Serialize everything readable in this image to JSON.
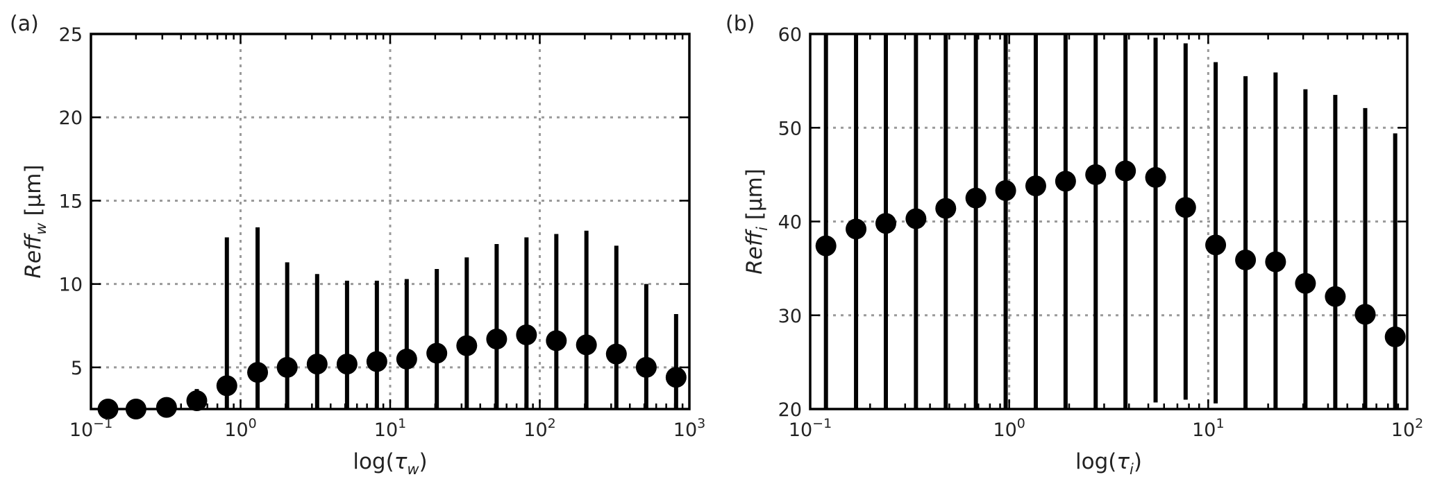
{
  "chart_data": [
    {
      "type": "scatter",
      "panel_label": "(a)",
      "title": "",
      "xlabel": {
        "base": "log(",
        "symbol": "τ",
        "sub": "w",
        "close": ")"
      },
      "ylabel": {
        "main": "Reff",
        "sub": "w",
        "unit": " [μm]"
      },
      "x_scale": "log",
      "xlim": [
        0.1,
        1000
      ],
      "ylim": [
        2.5,
        25
      ],
      "x_ticks": [
        {
          "base": "10",
          "exp": "−1",
          "value": 0.1
        },
        {
          "base": "10",
          "exp": "0",
          "value": 1
        },
        {
          "base": "10",
          "exp": "1",
          "value": 10
        },
        {
          "base": "10",
          "exp": "2",
          "value": 100
        },
        {
          "base": "10",
          "exp": "3",
          "value": 1000
        }
      ],
      "y_ticks": [
        5,
        10,
        15,
        20,
        25
      ],
      "grid": true,
      "points": [
        {
          "x": 0.13,
          "y": 2.5,
          "ylow": 2.5,
          "yhigh": 2.5
        },
        {
          "x": 0.2,
          "y": 2.5,
          "ylow": 2.5,
          "yhigh": 2.5
        },
        {
          "x": 0.32,
          "y": 2.6,
          "ylow": 2.5,
          "yhigh": 2.6
        },
        {
          "x": 0.51,
          "y": 3.0,
          "ylow": 2.5,
          "yhigh": 3.7
        },
        {
          "x": 0.81,
          "y": 3.9,
          "ylow": 2.5,
          "yhigh": 12.8
        },
        {
          "x": 1.3,
          "y": 4.7,
          "ylow": 2.5,
          "yhigh": 13.4
        },
        {
          "x": 2.05,
          "y": 5.0,
          "ylow": 2.5,
          "yhigh": 11.3
        },
        {
          "x": 3.25,
          "y": 5.2,
          "ylow": 2.5,
          "yhigh": 10.6
        },
        {
          "x": 5.15,
          "y": 5.2,
          "ylow": 2.5,
          "yhigh": 10.2
        },
        {
          "x": 8.15,
          "y": 5.35,
          "ylow": 2.5,
          "yhigh": 10.2
        },
        {
          "x": 12.9,
          "y": 5.5,
          "ylow": 2.5,
          "yhigh": 10.3
        },
        {
          "x": 20.5,
          "y": 5.85,
          "ylow": 2.5,
          "yhigh": 10.9
        },
        {
          "x": 32.5,
          "y": 6.3,
          "ylow": 2.5,
          "yhigh": 11.6
        },
        {
          "x": 51.5,
          "y": 6.7,
          "ylow": 2.5,
          "yhigh": 12.4
        },
        {
          "x": 81.5,
          "y": 6.95,
          "ylow": 2.5,
          "yhigh": 12.8
        },
        {
          "x": 129,
          "y": 6.6,
          "ylow": 2.5,
          "yhigh": 13.0
        },
        {
          "x": 205,
          "y": 6.35,
          "ylow": 2.5,
          "yhigh": 13.2
        },
        {
          "x": 325,
          "y": 5.8,
          "ylow": 2.5,
          "yhigh": 12.3
        },
        {
          "x": 515,
          "y": 5.0,
          "ylow": 2.5,
          "yhigh": 10.0
        },
        {
          "x": 815,
          "y": 4.4,
          "ylow": 2.5,
          "yhigh": 8.2
        }
      ]
    },
    {
      "type": "scatter",
      "panel_label": "(b)",
      "title": "",
      "xlabel": {
        "base": "log(",
        "symbol": "τ",
        "sub": "i",
        "close": ")"
      },
      "ylabel": {
        "main": "Reff",
        "sub": "i",
        "unit": " [μm]"
      },
      "x_scale": "log",
      "xlim": [
        0.1,
        100
      ],
      "ylim": [
        20,
        60
      ],
      "x_ticks": [
        {
          "base": "10",
          "exp": "−1",
          "value": 0.1
        },
        {
          "base": "10",
          "exp": "0",
          "value": 1
        },
        {
          "base": "10",
          "exp": "1",
          "value": 10
        },
        {
          "base": "10",
          "exp": "2",
          "value": 100
        }
      ],
      "y_ticks": [
        20,
        30,
        40,
        50,
        60
      ],
      "grid": true,
      "points": [
        {
          "x": 0.12,
          "y": 37.4,
          "ylow": 20,
          "yhigh": 60
        },
        {
          "x": 0.17,
          "y": 39.2,
          "ylow": 20,
          "yhigh": 60
        },
        {
          "x": 0.24,
          "y": 39.8,
          "ylow": 20,
          "yhigh": 60
        },
        {
          "x": 0.34,
          "y": 40.3,
          "ylow": 20,
          "yhigh": 60
        },
        {
          "x": 0.48,
          "y": 41.4,
          "ylow": 20,
          "yhigh": 60
        },
        {
          "x": 0.68,
          "y": 42.5,
          "ylow": 20,
          "yhigh": 60
        },
        {
          "x": 0.96,
          "y": 43.3,
          "ylow": 20,
          "yhigh": 60
        },
        {
          "x": 1.36,
          "y": 43.8,
          "ylow": 20,
          "yhigh": 60
        },
        {
          "x": 1.92,
          "y": 44.3,
          "ylow": 20,
          "yhigh": 60
        },
        {
          "x": 2.72,
          "y": 45.0,
          "ylow": 20,
          "yhigh": 60
        },
        {
          "x": 3.84,
          "y": 45.4,
          "ylow": 20,
          "yhigh": 60
        },
        {
          "x": 5.44,
          "y": 44.7,
          "ylow": 20.7,
          "yhigh": 59.6
        },
        {
          "x": 7.7,
          "y": 41.5,
          "ylow": 21.0,
          "yhigh": 59.0
        },
        {
          "x": 10.9,
          "y": 37.5,
          "ylow": 20.6,
          "yhigh": 57.0
        },
        {
          "x": 15.4,
          "y": 35.9,
          "ylow": 20,
          "yhigh": 55.5
        },
        {
          "x": 21.8,
          "y": 35.7,
          "ylow": 20,
          "yhigh": 55.9
        },
        {
          "x": 30.8,
          "y": 33.4,
          "ylow": 20,
          "yhigh": 54.1
        },
        {
          "x": 43.5,
          "y": 32.0,
          "ylow": 20,
          "yhigh": 53.5
        },
        {
          "x": 61.5,
          "y": 30.1,
          "ylow": 20,
          "yhigh": 52.1
        },
        {
          "x": 87.0,
          "y": 27.7,
          "ylow": 20,
          "yhigh": 49.4
        }
      ]
    }
  ]
}
